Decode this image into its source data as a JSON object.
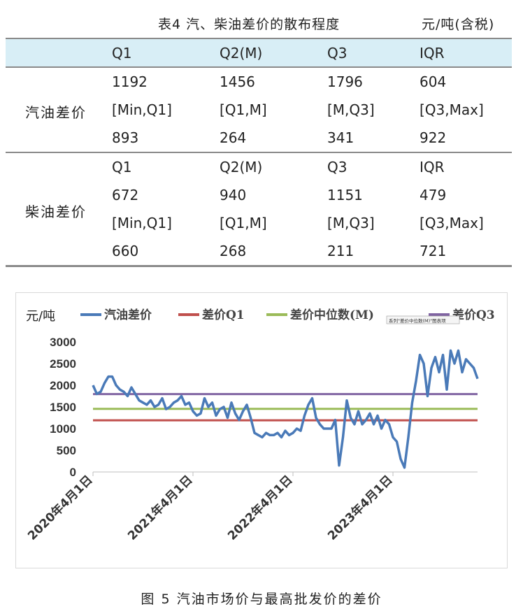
{
  "table": {
    "title": "表4 汽、柴油差价的散布程度",
    "unit": "元/吨(含税)",
    "headers": [
      "",
      "Q1",
      "Q2(M)",
      "Q3",
      "IQR"
    ],
    "gasoline": {
      "label": "汽油差价",
      "rows": [
        [
          "1192",
          "1456",
          "1796",
          "604"
        ],
        [
          "[Min,Q1]",
          "[Q1,M]",
          "[M,Q3]",
          "[Q3,Max]"
        ],
        [
          "893",
          "264",
          "341",
          "922"
        ]
      ]
    },
    "diesel": {
      "label": "柴油差价",
      "rows": [
        [
          "Q1",
          "Q2(M)",
          "Q3",
          "IQR"
        ],
        [
          "672",
          "940",
          "1151",
          "479"
        ],
        [
          "[Min,Q1]",
          "[Q1,M]",
          "[M,Q3]",
          "[Q3,Max]"
        ],
        [
          "660",
          "268",
          "211",
          "721"
        ]
      ]
    }
  },
  "caption": "图 5 汽油市场价与最高批发价的差价",
  "chart_data": {
    "type": "line",
    "ylabel": "元/吨",
    "ylim": [
      0,
      3000
    ],
    "yticks": [
      0,
      500,
      1000,
      1500,
      2000,
      2500,
      3000
    ],
    "x_tick_labels": [
      "2020年4月1日",
      "2021年4月1日",
      "2022年4月1日",
      "2023年4月1日"
    ],
    "tooltip": "系列\"差价中位数(M)\"图表项",
    "series": [
      {
        "name": "汽油差价",
        "color": "#4a7ab8",
        "x": [
          0,
          2,
          4,
          6,
          8,
          10,
          12,
          14,
          16,
          18,
          20,
          22,
          24,
          26,
          28,
          30,
          32,
          34,
          36,
          38,
          40,
          42,
          44,
          46,
          48,
          50,
          52,
          54,
          56,
          58,
          60,
          62,
          64,
          66,
          68,
          70,
          72,
          74,
          76,
          78,
          80,
          82,
          84,
          86,
          88,
          90,
          92,
          94,
          96,
          98,
          100,
          102,
          104,
          106,
          108,
          110,
          112,
          114,
          116,
          118,
          120,
          122,
          124,
          126,
          128,
          130,
          132,
          134,
          136,
          138,
          140,
          142,
          144,
          146,
          148,
          150,
          152,
          154,
          156,
          158,
          160,
          162,
          164,
          166,
          168,
          170,
          172,
          174,
          176,
          178,
          180,
          182,
          184,
          186,
          188,
          190,
          192,
          194,
          196,
          198,
          200
        ],
        "values": [
          2000,
          1800,
          1850,
          2050,
          2200,
          2200,
          2000,
          1900,
          1850,
          1750,
          1950,
          1800,
          1650,
          1600,
          1550,
          1650,
          1500,
          1550,
          1700,
          1450,
          1500,
          1600,
          1650,
          1750,
          1550,
          1600,
          1400,
          1300,
          1350,
          1700,
          1500,
          1600,
          1300,
          1450,
          1500,
          1250,
          1600,
          1350,
          1200,
          1400,
          1550,
          1250,
          900,
          850,
          800,
          900,
          850,
          850,
          900,
          800,
          950,
          850,
          900,
          1000,
          950,
          1300,
          1550,
          1700,
          1250,
          1100,
          1000,
          1000,
          1000,
          1200,
          150,
          800,
          1650,
          1250,
          1100,
          1400,
          1100,
          1200,
          1350,
          1100,
          1300,
          1000,
          1200,
          1100,
          800,
          700,
          300,
          100,
          800,
          1600,
          2100,
          2700,
          2500,
          1750,
          2400,
          2650,
          2300,
          2700,
          1900,
          2800,
          2500,
          2800,
          2300,
          2600,
          2500,
          2400,
          2150
        ]
      },
      {
        "name": "差价Q1",
        "color": "#c0504d",
        "constant": 1192
      },
      {
        "name": "差价中位数(M)",
        "color": "#9bbb59",
        "constant": 1456
      },
      {
        "name": "差价Q3",
        "color": "#8064a2",
        "constant": 1796
      }
    ]
  }
}
